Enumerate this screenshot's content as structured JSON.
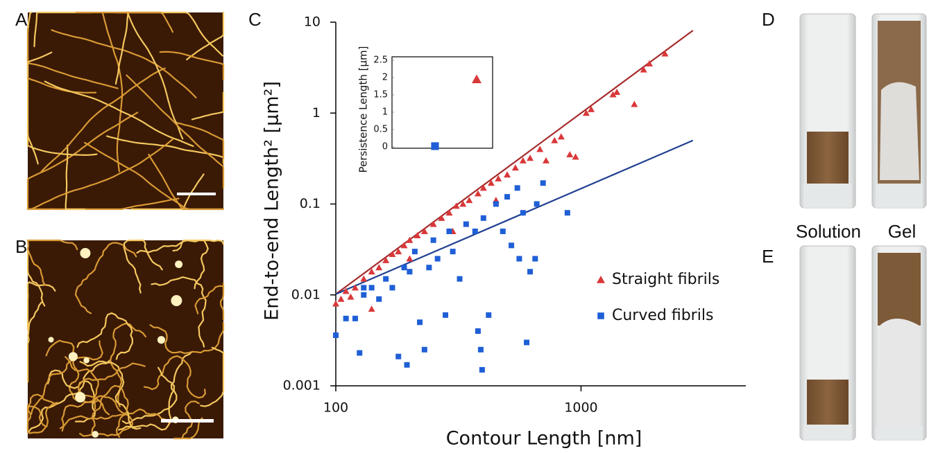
{
  "panels": {
    "a": "A",
    "b": "B",
    "c": "C",
    "d": "D",
    "e": "E",
    "solution": "Solution",
    "gel": "Gel"
  },
  "chart_data": [
    {
      "type": "scatter",
      "xlabel": "Contour Length [nm]",
      "ylabel": "End-to-end Length² [µm²]",
      "xscale": "log",
      "yscale": "log",
      "xlim": [
        100,
        4700
      ],
      "ylim": [
        0.001,
        10
      ],
      "xticks": [
        100,
        1000
      ],
      "yticks": [
        0.001,
        0.01,
        0.1,
        1,
        10
      ],
      "series": [
        {
          "name": "Straight fibrils",
          "color": "#d9383a",
          "marker": "triangle",
          "x": [
            100,
            105,
            110,
            115,
            120,
            130,
            140,
            140,
            150,
            160,
            170,
            180,
            190,
            200,
            200,
            215,
            230,
            250,
            270,
            290,
            300,
            310,
            330,
            350,
            380,
            400,
            430,
            450,
            460,
            500,
            540,
            580,
            620,
            680,
            720,
            780,
            830,
            900,
            950,
            1050,
            1100,
            1350,
            1400,
            1650,
            1800,
            1900,
            2200
          ],
          "values": [
            0.008,
            0.009,
            0.011,
            0.0095,
            0.012,
            0.015,
            0.018,
            0.007,
            0.02,
            0.024,
            0.028,
            0.03,
            0.035,
            0.04,
            0.025,
            0.045,
            0.05,
            0.06,
            0.07,
            0.08,
            0.05,
            0.095,
            0.1,
            0.11,
            0.13,
            0.15,
            0.17,
            0.11,
            0.19,
            0.21,
            0.25,
            0.3,
            0.32,
            0.4,
            0.3,
            0.5,
            0.55,
            0.35,
            0.33,
            1.0,
            1.1,
            1.6,
            1.7,
            1.25,
            3.0,
            3.5,
            4.5
          ]
        },
        {
          "name": "Curved fibrils",
          "color": "#1f5fd6",
          "marker": "square",
          "x": [
            100,
            110,
            120,
            125,
            130,
            130,
            140,
            150,
            160,
            170,
            180,
            190,
            195,
            200,
            210,
            220,
            230,
            240,
            250,
            260,
            280,
            290,
            300,
            320,
            340,
            370,
            380,
            390,
            395,
            400,
            420,
            450,
            480,
            500,
            520,
            550,
            560,
            580,
            600,
            620,
            650,
            660,
            700,
            880
          ],
          "values": [
            0.0036,
            0.0055,
            0.0055,
            0.0023,
            0.01,
            0.012,
            0.012,
            0.009,
            0.015,
            0.012,
            0.0021,
            0.02,
            0.0017,
            0.018,
            0.03,
            0.005,
            0.0025,
            0.02,
            0.04,
            0.025,
            0.006,
            0.05,
            0.03,
            0.015,
            0.06,
            0.05,
            0.004,
            0.0025,
            0.0015,
            0.07,
            0.006,
            0.1,
            0.05,
            0.12,
            0.035,
            0.15,
            0.025,
            0.08,
            0.003,
            0.018,
            0.025,
            0.1,
            0.17,
            0.08
          ]
        }
      ],
      "fits": [
        {
          "color": "#a52a2a",
          "x": [
            100,
            2860
          ],
          "values": [
            0.0102,
            8.1
          ]
        },
        {
          "color": "#1f3f8f",
          "x": [
            100,
            2860
          ],
          "values": [
            0.0102,
            0.5
          ]
        }
      ]
    },
    {
      "type": "scatter",
      "ylabel": "Persistence Length [µm]",
      "ylim": [
        0,
        2.5
      ],
      "yticks": [
        0,
        0.5,
        1,
        1.5,
        2,
        2.5
      ],
      "categories": [
        null,
        null
      ],
      "values": [
        0.02,
        1.95
      ],
      "colors": [
        "#1f5fd6",
        "#d9383a"
      ],
      "markers": [
        "square",
        "triangle"
      ]
    }
  ]
}
